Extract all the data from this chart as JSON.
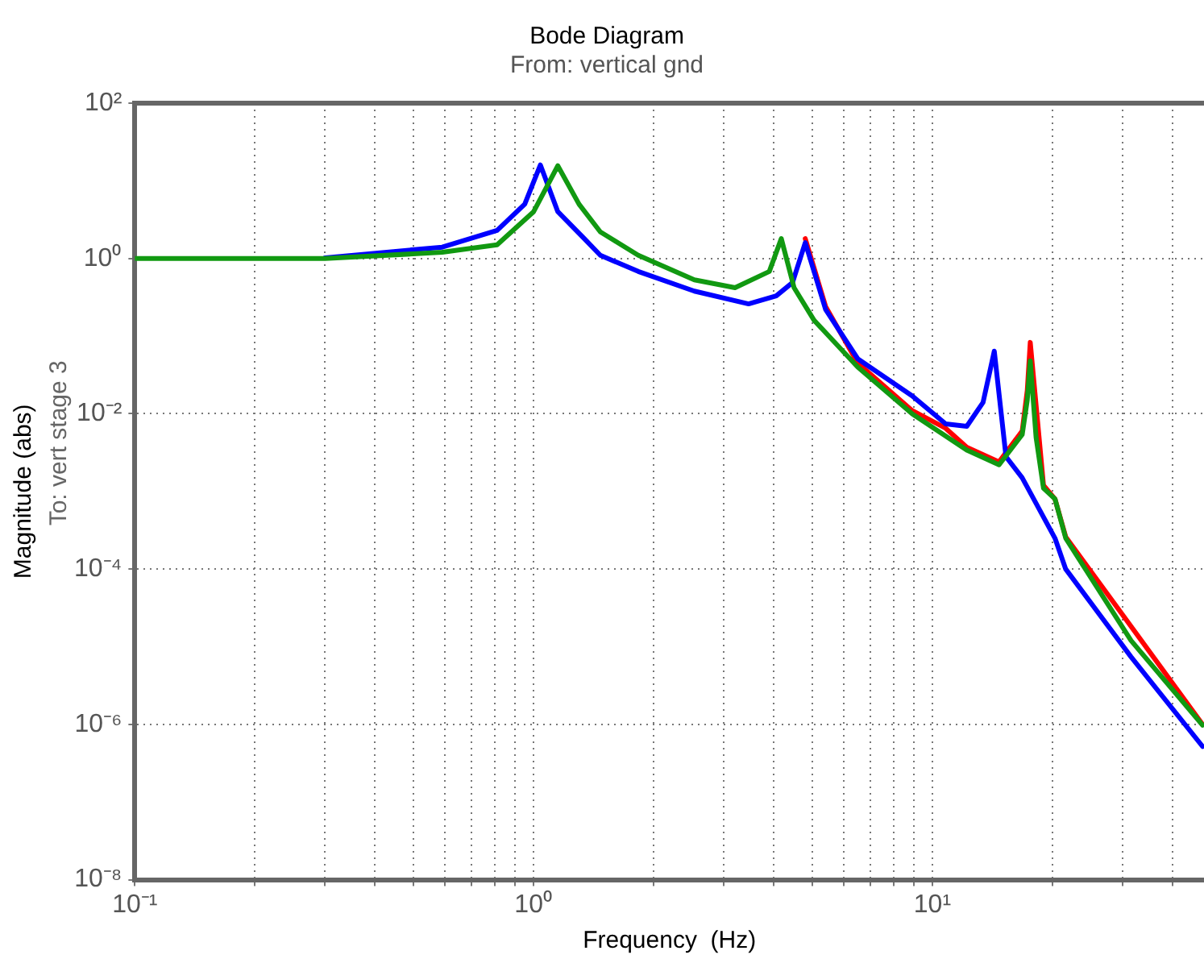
{
  "chart_data": {
    "type": "line",
    "title": "Bode Diagram",
    "subtitle": "From: vertical gnd",
    "xlabel": "Frequency  (Hz)",
    "ylabel": "Magnitude (abs)",
    "annotations": [
      "To: vert stage 3"
    ],
    "log": "xy",
    "grid": true,
    "legend": false,
    "marker": "none",
    "line_style": "solid",
    "xlim": [
      0.1,
      48
    ],
    "ylim": [
      1e-08,
      100
    ],
    "xticks": [
      {
        "value": 0.1,
        "label": "10⁻¹"
      },
      {
        "value": 0.2,
        "label": null
      },
      {
        "value": 0.3,
        "label": null
      },
      {
        "value": 0.4,
        "label": null
      },
      {
        "value": 0.5,
        "label": null
      },
      {
        "value": 0.6,
        "label": null
      },
      {
        "value": 0.7,
        "label": null
      },
      {
        "value": 0.8,
        "label": null
      },
      {
        "value": 0.9,
        "label": null
      },
      {
        "value": 1,
        "label": "10⁰"
      },
      {
        "value": 2,
        "label": null
      },
      {
        "value": 3,
        "label": null
      },
      {
        "value": 4,
        "label": null
      },
      {
        "value": 5,
        "label": null
      },
      {
        "value": 6,
        "label": null
      },
      {
        "value": 7,
        "label": null
      },
      {
        "value": 8,
        "label": null
      },
      {
        "value": 9,
        "label": null
      },
      {
        "value": 10,
        "label": "10¹"
      },
      {
        "value": 20,
        "label": null
      },
      {
        "value": 30,
        "label": null
      },
      {
        "value": 40,
        "label": null
      }
    ],
    "yticks": [
      {
        "value": 1e-08,
        "label": "10⁻⁸"
      },
      {
        "value": 1e-06,
        "label": "10⁻⁶"
      },
      {
        "value": 0.0001,
        "label": "10⁻⁴"
      },
      {
        "value": 0.01,
        "label": "10⁻²"
      },
      {
        "value": 1,
        "label": "10⁰"
      },
      {
        "value": 100,
        "label": "10²"
      }
    ],
    "series": [
      {
        "color": "#ff0000",
        "x": [
          4.8,
          5.4,
          6.5,
          8.9,
          10.8,
          12.2,
          14.7,
          16.8,
          17.3,
          17.6,
          18.2,
          19,
          20.3,
          21.6,
          31.5,
          47.6
        ],
        "values": [
          1.8,
          0.24,
          0.045,
          0.011,
          0.0065,
          0.0037,
          0.0024,
          0.006,
          0.02,
          0.083,
          null,
          0.0012,
          0.0008,
          0.00026,
          null,
          1e-06
        ]
      },
      {
        "color": "#0000ff",
        "x": [
          0.3,
          0.59,
          0.81,
          0.95,
          1.04,
          1.15,
          1.34,
          1.47,
          1.83,
          2.53,
          3.46,
          4.06,
          4.46,
          4.8,
          5.4,
          6.5,
          8.9,
          10.8,
          12.2,
          13.4,
          14.3,
          15.3,
          16.8,
          20.3,
          21.6,
          31.5,
          47.6
        ],
        "values": [
          1.02,
          1.4,
          2.3,
          5,
          16,
          4,
          1.8,
          1.1,
          0.68,
          0.38,
          0.26,
          0.33,
          0.49,
          1.6,
          0.22,
          0.051,
          0.017,
          0.0074,
          0.0069,
          0.014,
          0.064,
          0.0028,
          0.0015,
          0.00025,
          0.0001,
          7.4e-06,
          5.2e-07
        ]
      },
      {
        "color": "#119911",
        "x": [
          0.1,
          0.3,
          0.59,
          0.81,
          1.0,
          1.15,
          1.3,
          1.47,
          1.83,
          2.53,
          3.2,
          3.9,
          4.18,
          4.5,
          5.05,
          6.5,
          8.9,
          12.2,
          14.7,
          16.8,
          17.3,
          17.6,
          18.2,
          19,
          20.3,
          21.6,
          31.5,
          47.6
        ],
        "values": [
          1,
          1,
          1.2,
          1.5,
          4,
          15.6,
          5,
          2.2,
          1.1,
          0.53,
          0.42,
          0.68,
          1.8,
          0.42,
          0.16,
          0.04,
          0.01,
          0.0034,
          0.0022,
          0.0054,
          0.015,
          0.048,
          0.005,
          0.0011,
          0.0008,
          0.00025,
          1.2e-05,
          9.8e-07
        ]
      }
    ]
  }
}
